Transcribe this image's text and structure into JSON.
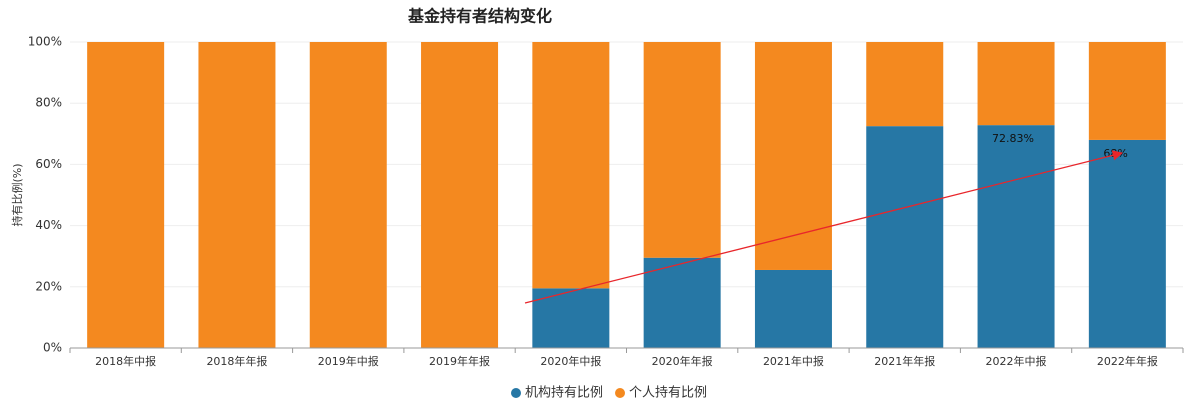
{
  "chart_data": {
    "type": "stacked_bar",
    "title": "基金持有者结构变化",
    "y_label": "持有比例(%)",
    "categories": [
      "2018年中报",
      "2018年年报",
      "2019年中报",
      "2019年年报",
      "2020年中报",
      "2020年年报",
      "2021年中报",
      "2021年年报",
      "2022年中报",
      "2022年年报"
    ],
    "series": [
      {
        "name": "机构持有比例",
        "color": "#2677a5",
        "values": [
          0,
          0,
          0,
          0,
          19.5,
          29.5,
          25.5,
          72.5,
          72.83,
          68
        ],
        "value_labels": [
          null,
          null,
          null,
          null,
          null,
          null,
          null,
          null,
          "72.83%",
          "68%"
        ]
      },
      {
        "name": "个人持有比例",
        "color": "#f4891f",
        "values": [
          100,
          100,
          100,
          100,
          80.5,
          70.5,
          74.5,
          27.5,
          27.17,
          32
        ]
      }
    ],
    "ylim": [
      0,
      100
    ],
    "yticks": [
      {
        "value": 0,
        "label": "0%"
      },
      {
        "value": 20,
        "label": "20%"
      },
      {
        "value": 40,
        "label": "40%"
      },
      {
        "value": 60,
        "label": "60%"
      },
      {
        "value": 80,
        "label": "80%"
      },
      {
        "value": 100,
        "label": "100%"
      }
    ],
    "grid": true
  }
}
